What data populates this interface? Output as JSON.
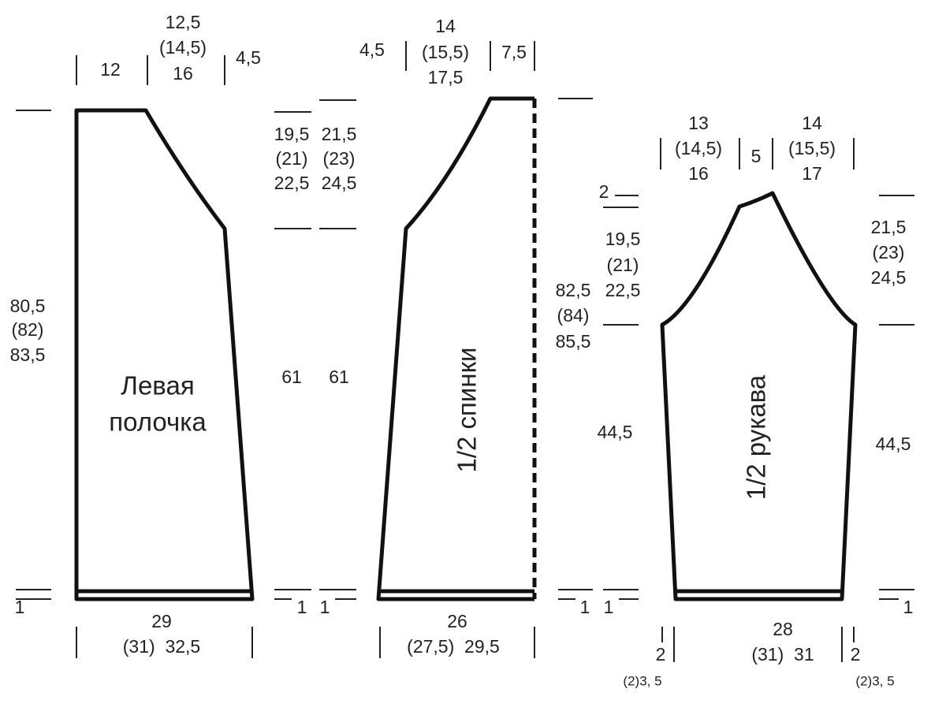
{
  "pieces": [
    {
      "title": [
        "Левая",
        "полочка"
      ],
      "labels": [
        "12",
        "12,5",
        "(14,5)",
        "16",
        "4,5",
        "80,5",
        "(82)",
        "83,5",
        "19,5",
        "(21)",
        "22,5",
        "61",
        "1",
        "1",
        "29",
        "(31)  32,5"
      ]
    },
    {
      "title": [
        "1/2 спинки"
      ],
      "labels": [
        "21,5",
        "(23)",
        "24,5",
        "61",
        "1",
        "4,5",
        "14",
        "(15,5)",
        "17,5",
        "7,5",
        "82,5",
        "(84)",
        "85,5",
        "1",
        "26",
        "(27,5)  29,5"
      ]
    },
    {
      "title": [
        "1/2 рукава"
      ],
      "labels": [
        "2",
        "19,5",
        "(21)",
        "22,5",
        "44,5",
        "1",
        "13",
        "(14,5)",
        "16",
        "5",
        "14",
        "(15,5)",
        "17",
        "21,5",
        "(23)",
        "24,5",
        "44,5",
        "1",
        "28",
        "(31)  31",
        "2",
        "(2)3, 5",
        "2",
        "(2)3, 5"
      ]
    }
  ]
}
